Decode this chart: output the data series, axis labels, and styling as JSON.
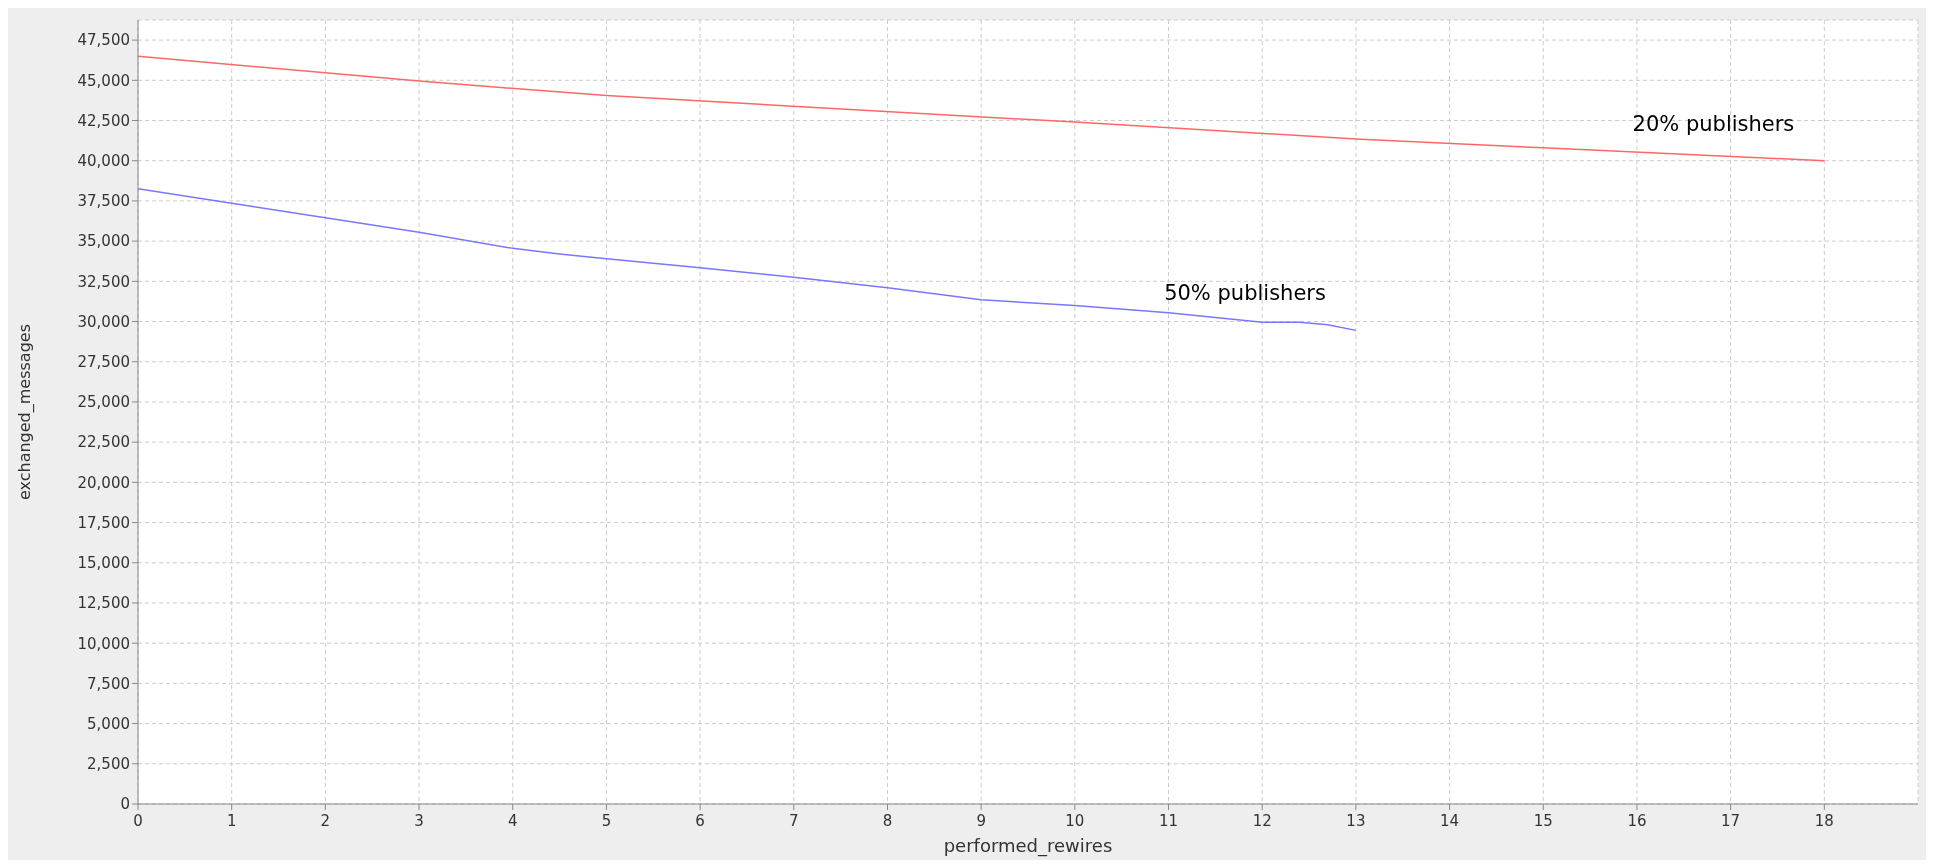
{
  "chart_data": {
    "type": "line",
    "xlabel": "performed_rewires",
    "ylabel": "exchanged_messages",
    "xlim": [
      0,
      19
    ],
    "xticks": [
      0,
      1,
      2,
      3,
      4,
      5,
      6,
      7,
      8,
      9,
      10,
      11,
      12,
      13,
      14,
      15,
      16,
      17,
      18
    ],
    "ylim": [
      0,
      48750
    ],
    "yticks": [
      {
        "value": 0,
        "label": "0"
      },
      {
        "value": 2500,
        "label": "2,500"
      },
      {
        "value": 5000,
        "label": "5,000"
      },
      {
        "value": 7500,
        "label": "7,500"
      },
      {
        "value": 10000,
        "label": "10,000"
      },
      {
        "value": 12500,
        "label": "12,500"
      },
      {
        "value": 15000,
        "label": "15,000"
      },
      {
        "value": 17500,
        "label": "17,500"
      },
      {
        "value": 20000,
        "label": "20,000"
      },
      {
        "value": 22500,
        "label": "22,500"
      },
      {
        "value": 25000,
        "label": "25,000"
      },
      {
        "value": 27500,
        "label": "27,500"
      },
      {
        "value": 30000,
        "label": "30,000"
      },
      {
        "value": 32500,
        "label": "32,500"
      },
      {
        "value": 35000,
        "label": "35,000"
      },
      {
        "value": 37500,
        "label": "37,500"
      },
      {
        "value": 40000,
        "label": "40,000"
      },
      {
        "value": 42500,
        "label": "42,500"
      },
      {
        "value": 45000,
        "label": "45,000"
      },
      {
        "value": 47500,
        "label": "47,500"
      }
    ],
    "grid": true,
    "line_style": "solid",
    "series": [
      {
        "name": "20% publishers",
        "color": "#ff6666",
        "x": [
          0,
          3,
          5,
          10,
          13,
          15,
          18
        ],
        "values": [
          46500,
          44950,
          44050,
          42400,
          41350,
          40800,
          40000
        ]
      },
      {
        "name": "50% publishers",
        "color": "#7777ff",
        "x": [
          0,
          1,
          2,
          3,
          4,
          4.5,
          5,
          6,
          7,
          8,
          9,
          10,
          11,
          12,
          12.4,
          12.7,
          13
        ],
        "values": [
          38250,
          37350,
          36450,
          35550,
          34550,
          34200,
          33900,
          33350,
          32750,
          32100,
          31350,
          31000,
          30550,
          29950,
          29950,
          29800,
          29450
        ]
      }
    ]
  }
}
